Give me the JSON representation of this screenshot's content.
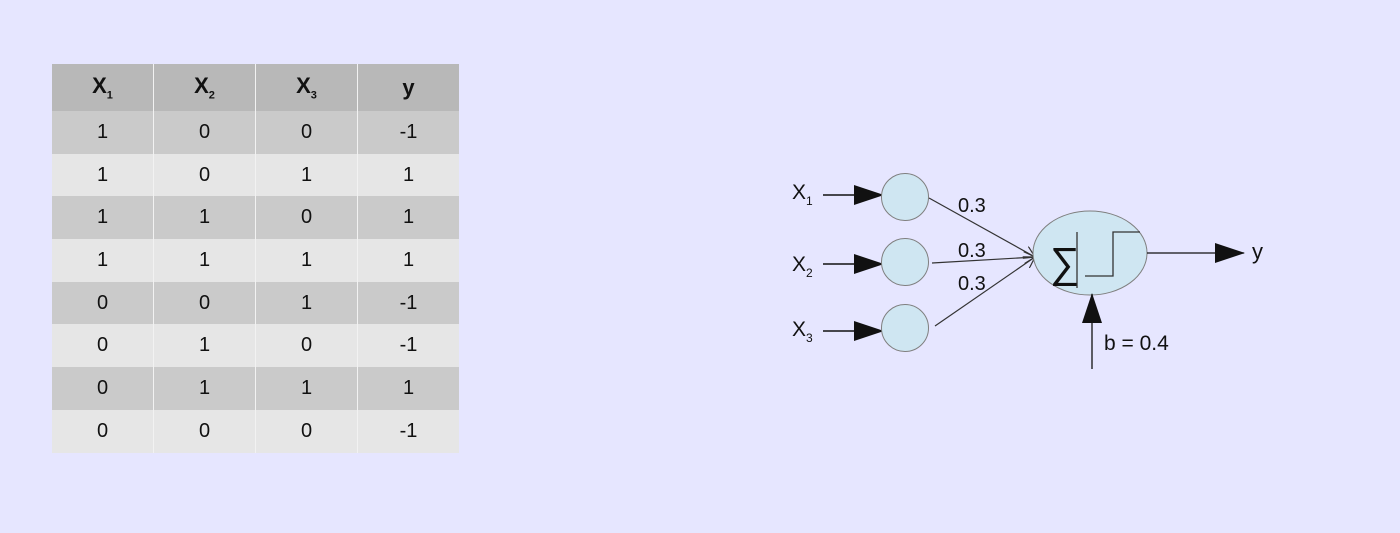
{
  "table": {
    "headers": [
      {
        "base": "X",
        "sub": "1"
      },
      {
        "base": "X",
        "sub": "2"
      },
      {
        "base": "X",
        "sub": "3"
      },
      {
        "base": "y",
        "sub": ""
      }
    ],
    "rows": [
      [
        "1",
        "0",
        "0",
        "-1"
      ],
      [
        "1",
        "0",
        "1",
        "1"
      ],
      [
        "1",
        "1",
        "0",
        "1"
      ],
      [
        "1",
        "1",
        "1",
        "1"
      ],
      [
        "0",
        "0",
        "1",
        "-1"
      ],
      [
        "0",
        "1",
        "0",
        "-1"
      ],
      [
        "0",
        "1",
        "1",
        "1"
      ],
      [
        "0",
        "0",
        "0",
        "-1"
      ]
    ]
  },
  "diagram": {
    "inputs": [
      {
        "base": "X",
        "sub": "1"
      },
      {
        "base": "X",
        "sub": "2"
      },
      {
        "base": "X",
        "sub": "3"
      }
    ],
    "weights": [
      "0.3",
      "0.3",
      "0.3"
    ],
    "sum_symbol": "∑",
    "bias_label": "b = 0.4",
    "output_label": "y",
    "colors": {
      "node_fill": "#cfe6f2",
      "node_stroke": "#7f7f7f",
      "line": "#333333"
    }
  }
}
